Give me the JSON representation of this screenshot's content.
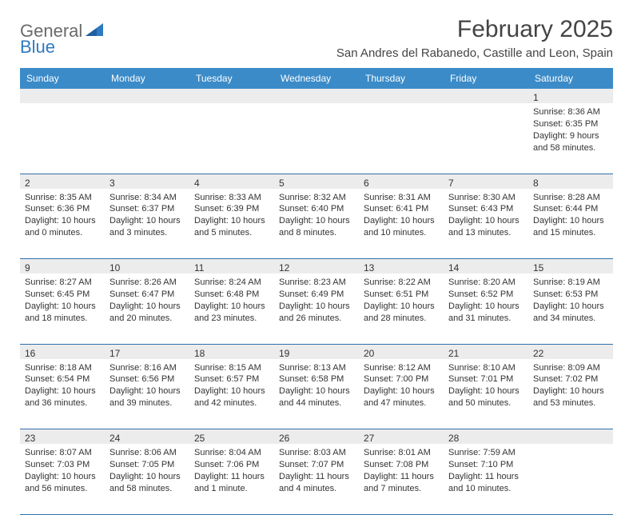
{
  "brand": {
    "part1": "General",
    "part2": "Blue"
  },
  "title": "February 2025",
  "location": "San Andres del Rabanedo, Castille and Leon, Spain",
  "colors": {
    "header_bg": "#3b8bc8",
    "header_text": "#ffffff",
    "border": "#2f6fa8",
    "daynum_bg": "#ececec",
    "body_text": "#333333",
    "brand_gray": "#6a6a6a",
    "brand_blue": "#2f7ac0"
  },
  "day_headers": [
    "Sunday",
    "Monday",
    "Tuesday",
    "Wednesday",
    "Thursday",
    "Friday",
    "Saturday"
  ],
  "weeks": [
    [
      null,
      null,
      null,
      null,
      null,
      null,
      {
        "n": "1",
        "sunrise": "8:36 AM",
        "sunset": "6:35 PM",
        "daylight": "9 hours and 58 minutes."
      }
    ],
    [
      {
        "n": "2",
        "sunrise": "8:35 AM",
        "sunset": "6:36 PM",
        "daylight": "10 hours and 0 minutes."
      },
      {
        "n": "3",
        "sunrise": "8:34 AM",
        "sunset": "6:37 PM",
        "daylight": "10 hours and 3 minutes."
      },
      {
        "n": "4",
        "sunrise": "8:33 AM",
        "sunset": "6:39 PM",
        "daylight": "10 hours and 5 minutes."
      },
      {
        "n": "5",
        "sunrise": "8:32 AM",
        "sunset": "6:40 PM",
        "daylight": "10 hours and 8 minutes."
      },
      {
        "n": "6",
        "sunrise": "8:31 AM",
        "sunset": "6:41 PM",
        "daylight": "10 hours and 10 minutes."
      },
      {
        "n": "7",
        "sunrise": "8:30 AM",
        "sunset": "6:43 PM",
        "daylight": "10 hours and 13 minutes."
      },
      {
        "n": "8",
        "sunrise": "8:28 AM",
        "sunset": "6:44 PM",
        "daylight": "10 hours and 15 minutes."
      }
    ],
    [
      {
        "n": "9",
        "sunrise": "8:27 AM",
        "sunset": "6:45 PM",
        "daylight": "10 hours and 18 minutes."
      },
      {
        "n": "10",
        "sunrise": "8:26 AM",
        "sunset": "6:47 PM",
        "daylight": "10 hours and 20 minutes."
      },
      {
        "n": "11",
        "sunrise": "8:24 AM",
        "sunset": "6:48 PM",
        "daylight": "10 hours and 23 minutes."
      },
      {
        "n": "12",
        "sunrise": "8:23 AM",
        "sunset": "6:49 PM",
        "daylight": "10 hours and 26 minutes."
      },
      {
        "n": "13",
        "sunrise": "8:22 AM",
        "sunset": "6:51 PM",
        "daylight": "10 hours and 28 minutes."
      },
      {
        "n": "14",
        "sunrise": "8:20 AM",
        "sunset": "6:52 PM",
        "daylight": "10 hours and 31 minutes."
      },
      {
        "n": "15",
        "sunrise": "8:19 AM",
        "sunset": "6:53 PM",
        "daylight": "10 hours and 34 minutes."
      }
    ],
    [
      {
        "n": "16",
        "sunrise": "8:18 AM",
        "sunset": "6:54 PM",
        "daylight": "10 hours and 36 minutes."
      },
      {
        "n": "17",
        "sunrise": "8:16 AM",
        "sunset": "6:56 PM",
        "daylight": "10 hours and 39 minutes."
      },
      {
        "n": "18",
        "sunrise": "8:15 AM",
        "sunset": "6:57 PM",
        "daylight": "10 hours and 42 minutes."
      },
      {
        "n": "19",
        "sunrise": "8:13 AM",
        "sunset": "6:58 PM",
        "daylight": "10 hours and 44 minutes."
      },
      {
        "n": "20",
        "sunrise": "8:12 AM",
        "sunset": "7:00 PM",
        "daylight": "10 hours and 47 minutes."
      },
      {
        "n": "21",
        "sunrise": "8:10 AM",
        "sunset": "7:01 PM",
        "daylight": "10 hours and 50 minutes."
      },
      {
        "n": "22",
        "sunrise": "8:09 AM",
        "sunset": "7:02 PM",
        "daylight": "10 hours and 53 minutes."
      }
    ],
    [
      {
        "n": "23",
        "sunrise": "8:07 AM",
        "sunset": "7:03 PM",
        "daylight": "10 hours and 56 minutes."
      },
      {
        "n": "24",
        "sunrise": "8:06 AM",
        "sunset": "7:05 PM",
        "daylight": "10 hours and 58 minutes."
      },
      {
        "n": "25",
        "sunrise": "8:04 AM",
        "sunset": "7:06 PM",
        "daylight": "11 hours and 1 minute."
      },
      {
        "n": "26",
        "sunrise": "8:03 AM",
        "sunset": "7:07 PM",
        "daylight": "11 hours and 4 minutes."
      },
      {
        "n": "27",
        "sunrise": "8:01 AM",
        "sunset": "7:08 PM",
        "daylight": "11 hours and 7 minutes."
      },
      {
        "n": "28",
        "sunrise": "7:59 AM",
        "sunset": "7:10 PM",
        "daylight": "11 hours and 10 minutes."
      },
      null
    ]
  ],
  "labels": {
    "sunrise": "Sunrise: ",
    "sunset": "Sunset: ",
    "daylight": "Daylight: "
  }
}
